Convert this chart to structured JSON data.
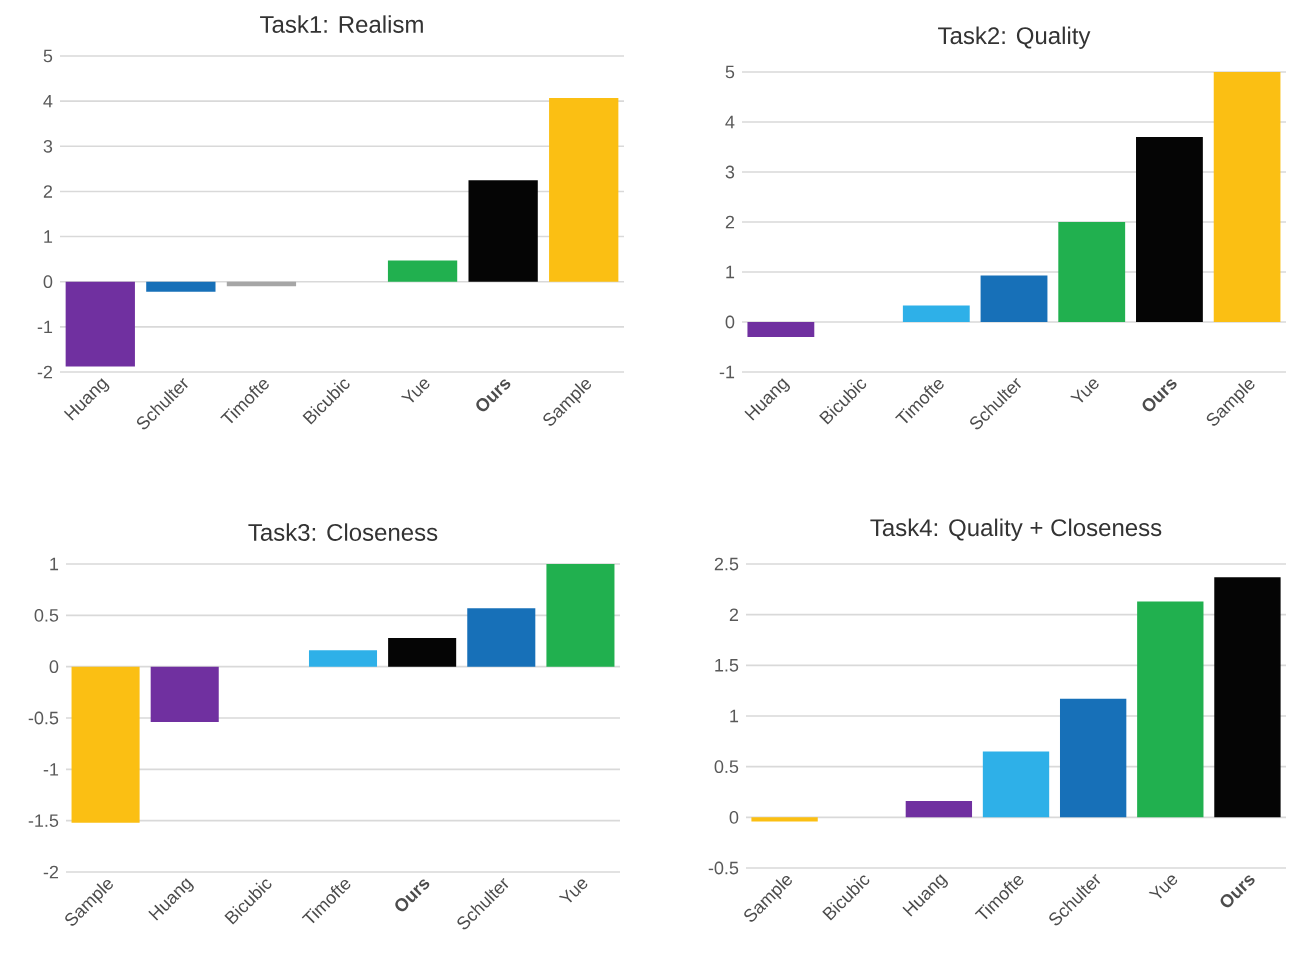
{
  "chart_data": [
    {
      "type": "bar",
      "title": "Task1: Realism",
      "categories": [
        "Huang",
        "Schulter",
        "Timofte",
        "Bicubic",
        "Yue",
        "**Ours**",
        "Sample"
      ],
      "values": [
        -1.88,
        -0.22,
        -0.1,
        0,
        0.47,
        2.25,
        4.07
      ],
      "colors": [
        "#7030a0",
        "#1770b8",
        "#a6a6a6",
        "#a6a6a6",
        "#21b04f",
        "#050505",
        "#fbbf13"
      ],
      "ylim": [
        -2,
        5
      ],
      "yticks": [
        -2,
        -1,
        0,
        1,
        2,
        3,
        4,
        5
      ],
      "grid": "y"
    },
    {
      "type": "bar",
      "title": "Task2: Quality",
      "categories": [
        "Huang",
        "Bicubic",
        "Timofte",
        "Schulter",
        "Yue",
        "**Ours**",
        "Sample"
      ],
      "values": [
        -0.3,
        0,
        0.33,
        0.93,
        2.0,
        3.7,
        5.0
      ],
      "colors": [
        "#7030a0",
        "#a6a6a6",
        "#2eb0e8",
        "#1770b8",
        "#21b04f",
        "#050505",
        "#fbbf13"
      ],
      "ylim": [
        -1,
        5
      ],
      "yticks": [
        -1,
        0,
        1,
        2,
        3,
        4,
        5
      ],
      "grid": "y"
    },
    {
      "type": "bar",
      "title": "Task3: Closeness",
      "categories": [
        "Sample",
        "Huang",
        "Bicubic",
        "Timofte",
        "**Ours**",
        "Schulter",
        "Yue"
      ],
      "values": [
        -1.52,
        -0.54,
        0,
        0.16,
        0.28,
        0.57,
        1.0
      ],
      "colors": [
        "#fbbf13",
        "#7030a0",
        "#a6a6a6",
        "#2eb0e8",
        "#050505",
        "#1770b8",
        "#21b04f"
      ],
      "ylim": [
        -2,
        1
      ],
      "yticks": [
        -2,
        -1.5,
        -1,
        -0.5,
        0,
        0.5,
        1
      ],
      "grid": "y"
    },
    {
      "type": "bar",
      "title": "Task4: Quality + Closeness",
      "categories": [
        "Sample",
        "Bicubic",
        "Huang",
        "Timofte",
        "Schulter",
        "Yue",
        "**Ours**"
      ],
      "values": [
        -0.04,
        0,
        0.16,
        0.65,
        1.17,
        2.13,
        2.37
      ],
      "colors": [
        "#fbbf13",
        "#a6a6a6",
        "#7030a0",
        "#2eb0e8",
        "#1770b8",
        "#21b04f",
        "#050505"
      ],
      "ylim": [
        -0.5,
        2.5
      ],
      "yticks": [
        -0.5,
        0,
        0.5,
        1,
        1.5,
        2,
        2.5
      ],
      "grid": "y"
    }
  ]
}
